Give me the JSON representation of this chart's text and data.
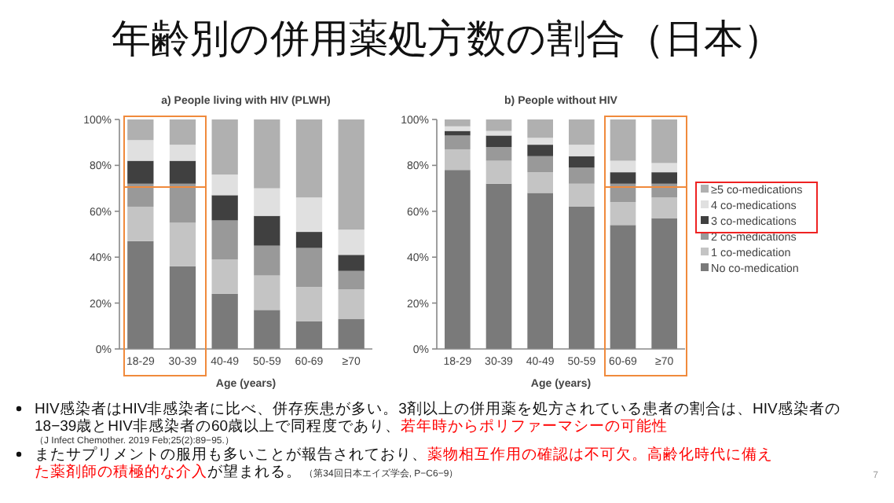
{
  "chart_data": [
    {
      "type": "bar",
      "stacked": true,
      "title": "a) People living with HIV (PLWH)",
      "xlabel": "Age (years)",
      "categories": [
        "18-29",
        "30-39",
        "40-49",
        "50-59",
        "60-69",
        "≥70"
      ],
      "ylim": [
        0,
        100
      ],
      "yticks": [
        {
          "value": 0,
          "label": "0%"
        },
        {
          "value": 20,
          "label": "20%"
        },
        {
          "value": 40,
          "label": "40%"
        },
        {
          "value": 60,
          "label": "60%"
        },
        {
          "value": 80,
          "label": "80%"
        },
        {
          "value": 100,
          "label": "100%"
        }
      ],
      "series": [
        {
          "color": "#7a7a7a",
          "values": [
            47,
            36,
            24,
            17,
            12,
            13
          ]
        },
        {
          "color": "#c4c4c4",
          "values": [
            15,
            19,
            15,
            15,
            15,
            13
          ]
        },
        {
          "color": "#999999",
          "values": [
            10,
            17,
            17,
            13,
            17,
            8
          ]
        },
        {
          "color": "#404040",
          "values": [
            10,
            10,
            11,
            13,
            7,
            7
          ]
        },
        {
          "color": "#e0e0e0",
          "values": [
            9,
            7,
            9,
            12,
            15,
            11
          ]
        },
        {
          "color": "#b0b0b0",
          "values": [
            9,
            11,
            24,
            30,
            34,
            48
          ]
        }
      ]
    },
    {
      "type": "bar",
      "stacked": true,
      "title": "b) People without HIV",
      "xlabel": "Age (years)",
      "legend": "right",
      "categories": [
        "18-29",
        "30-39",
        "40-49",
        "50-59",
        "60-69",
        "≥70"
      ],
      "ylim": [
        0,
        100
      ],
      "yticks": [
        {
          "value": 0,
          "label": "0%"
        },
        {
          "value": 20,
          "label": "20%"
        },
        {
          "value": 40,
          "label": "40%"
        },
        {
          "value": 60,
          "label": "60%"
        },
        {
          "value": 80,
          "label": "80%"
        },
        {
          "value": 100,
          "label": "100%"
        }
      ],
      "series": [
        {
          "name": "No co-medication",
          "color": "#7a7a7a",
          "values": [
            78,
            72,
            68,
            62,
            54,
            57
          ]
        },
        {
          "name": "1 co-medication",
          "color": "#c4c4c4",
          "values": [
            9,
            10,
            9,
            10,
            10,
            9
          ]
        },
        {
          "name": "2 co-medications",
          "color": "#999999",
          "values": [
            6,
            6,
            7,
            7,
            8,
            6
          ]
        },
        {
          "name": "3 co-medications",
          "color": "#404040",
          "values": [
            2,
            5,
            5,
            5,
            5,
            5
          ]
        },
        {
          "name": "4 co-medications",
          "color": "#e0e0e0",
          "values": [
            2,
            2,
            3,
            5,
            5,
            4
          ]
        },
        {
          "name": "≥5 co-medications",
          "color": "#b0b0b0",
          "values": [
            3,
            5,
            8,
            11,
            18,
            19
          ]
        }
      ]
    },
    {
      "type": "other",
      "title": "年齢別の併用薬処方数の割合（日本）",
      "annotations": [
        "HIV感染者はHIV非感染者に比べ、併存疾患が多い。3剤以上の併用薬を処方されている患者の割合は、HIV感染者の18−39歳とHIV非感染者の60歳以上で同程度であり、",
        "若年時からポリファーマシーの可能性",
        "（J Infect Chemother. 2019 Feb;25(2):89−95.）",
        "またサプリメントの服用も多いことが報告されており、",
        "薬物相互作用の確認は不可欠。高齢化時代に備えた薬剤師の積極的な介入",
        "が望まれる。",
        "（第34回日本エイズ学会, P−C6−9）",
        "7"
      ]
    }
  ]
}
